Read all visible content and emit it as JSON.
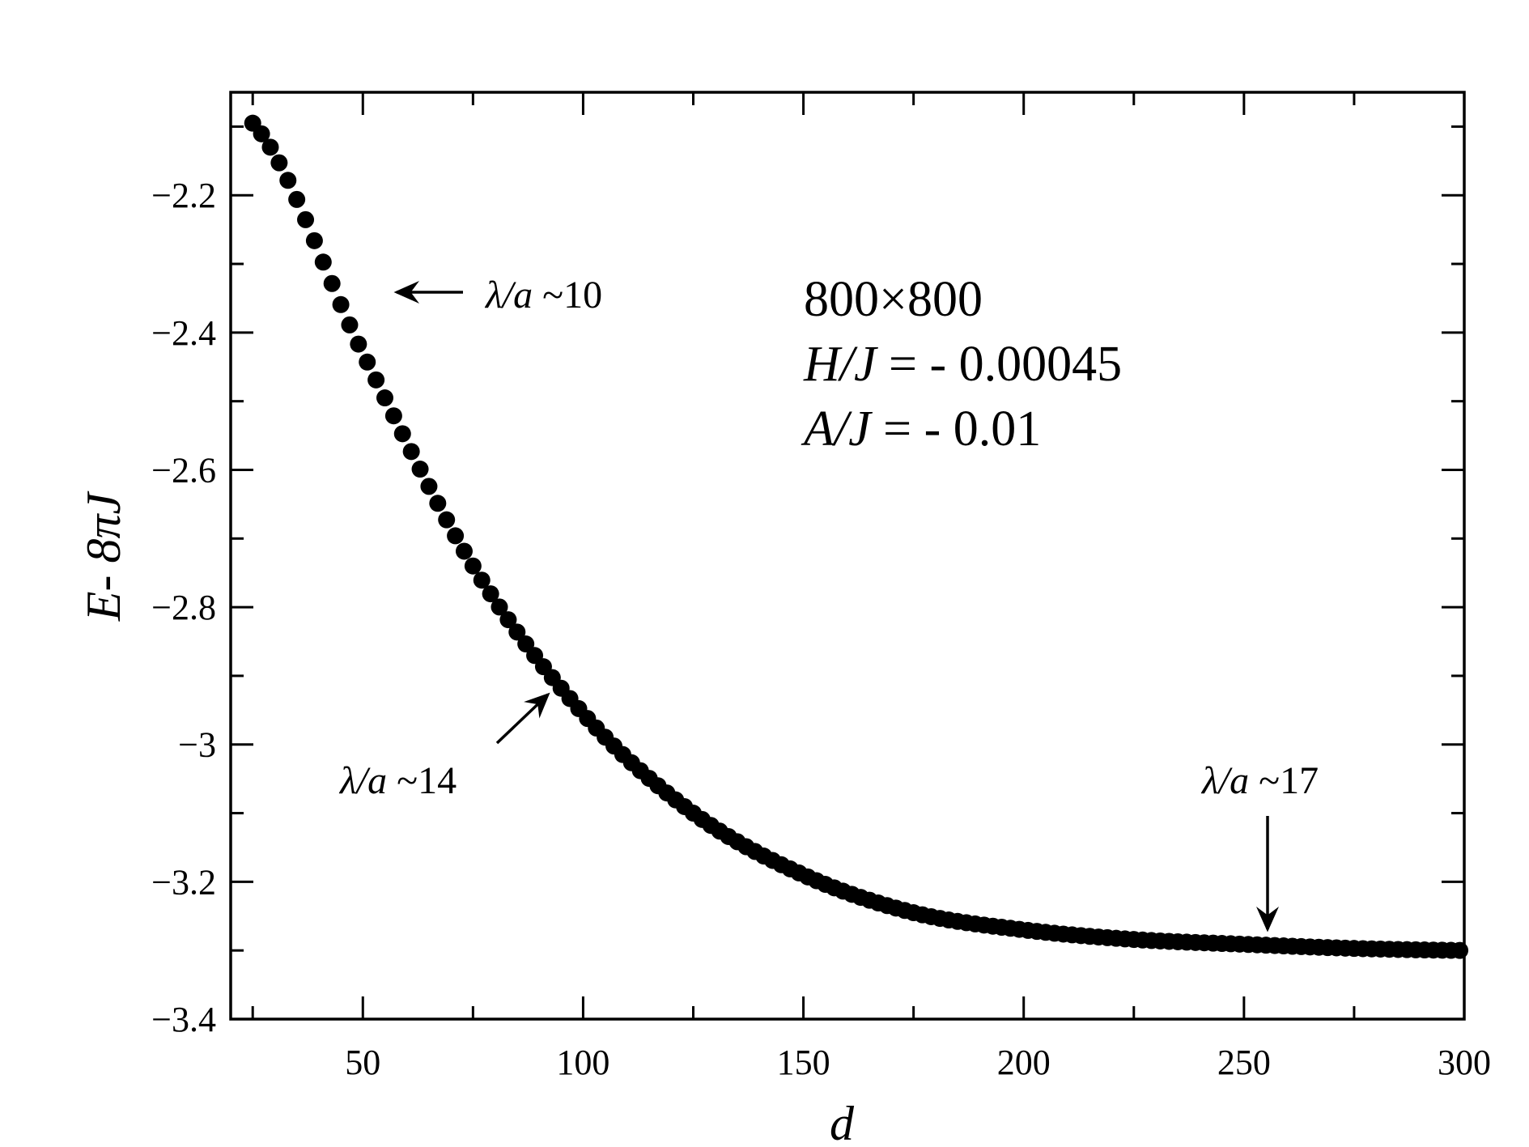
{
  "chart_data": {
    "type": "scatter",
    "xlabel": "d",
    "ylabel": "E- 8πJ",
    "xlim": [
      20,
      300
    ],
    "ylim": [
      -3.4,
      -2.05
    ],
    "xticks": [
      50,
      100,
      150,
      200,
      250,
      300
    ],
    "xtick_labels": [
      "50",
      "100",
      "150",
      "200",
      "250",
      "300"
    ],
    "yticks": [
      -2.2,
      -2.4,
      -2.6,
      -2.8,
      -3.0,
      -3.2,
      -3.4
    ],
    "ytick_labels": [
      "−2.2",
      "−2.4",
      "−2.6",
      "−2.8",
      "−3",
      "−3.2",
      "−3.4"
    ],
    "grid": false,
    "legend": "none",
    "series": [
      {
        "marker_color": "#000000",
        "x": [
          25,
          50,
          75,
          100,
          125,
          150,
          175,
          200,
          225,
          250,
          275,
          300
        ],
        "y": [
          -2.095,
          -2.43,
          -2.74,
          -2.955,
          -3.1,
          -3.19,
          -3.245,
          -3.27,
          -3.284,
          -3.291,
          -3.297,
          -3.3
        ]
      }
    ],
    "info_box": {
      "line1": "800×800",
      "line2_var": "H/J",
      "line2_val": " = - 0.00045",
      "line3_var": "A/J",
      "line3_val": " = - 0.01"
    },
    "annotations": [
      {
        "var": "λ/a",
        "val": " ~10",
        "point_x": 51,
        "point_y": -2.345
      },
      {
        "var": "λ/a",
        "val": " ~14",
        "point_x": 93,
        "point_y": -2.905
      },
      {
        "var": "λ/a",
        "val": " ~17",
        "point_x": 255,
        "point_y": -3.29
      }
    ]
  }
}
